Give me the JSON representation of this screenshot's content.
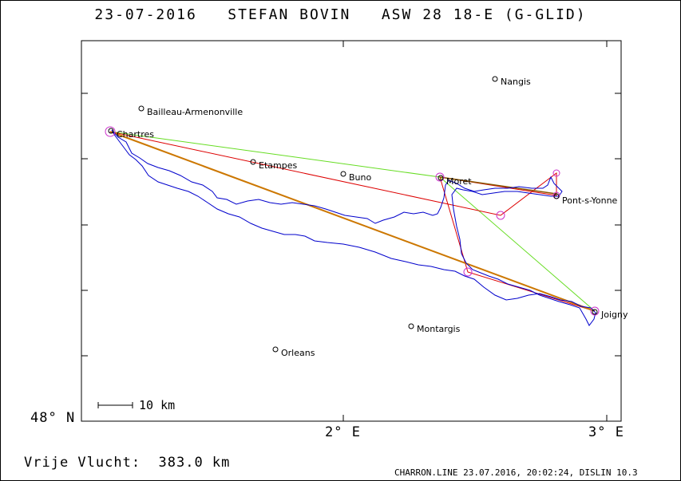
{
  "header": {
    "title": "23-07-2016   STEFAN BOVIN   ASW 28 18-E (G-GLID)"
  },
  "axes": {
    "lat_label": "48° N",
    "lon_labels": [
      "2° E",
      "3° E"
    ]
  },
  "scale_bar": {
    "label": "10 km"
  },
  "towns": [
    {
      "name": "Nangis"
    },
    {
      "name": "Bailleau-Armenonville"
    },
    {
      "name": "Chartres"
    },
    {
      "name": "Etampes"
    },
    {
      "name": "Buno"
    },
    {
      "name": "Moret"
    },
    {
      "name": "Pont-s-Yonne"
    },
    {
      "name": "Joigny"
    },
    {
      "name": "Montargis"
    },
    {
      "name": "Orleans"
    }
  ],
  "footer": {
    "distance": "Vrije Vlucht:  383.0 km",
    "info": "CHARRON.LINE 23.07.2016, 20:02:24, DISLIN 10.3"
  },
  "colors": {
    "track": "#0000cc",
    "task_green": "#66dd22",
    "task_red": "#dd0000",
    "task_orange": "#cc7700",
    "turnpoint": "#cc33cc"
  }
}
